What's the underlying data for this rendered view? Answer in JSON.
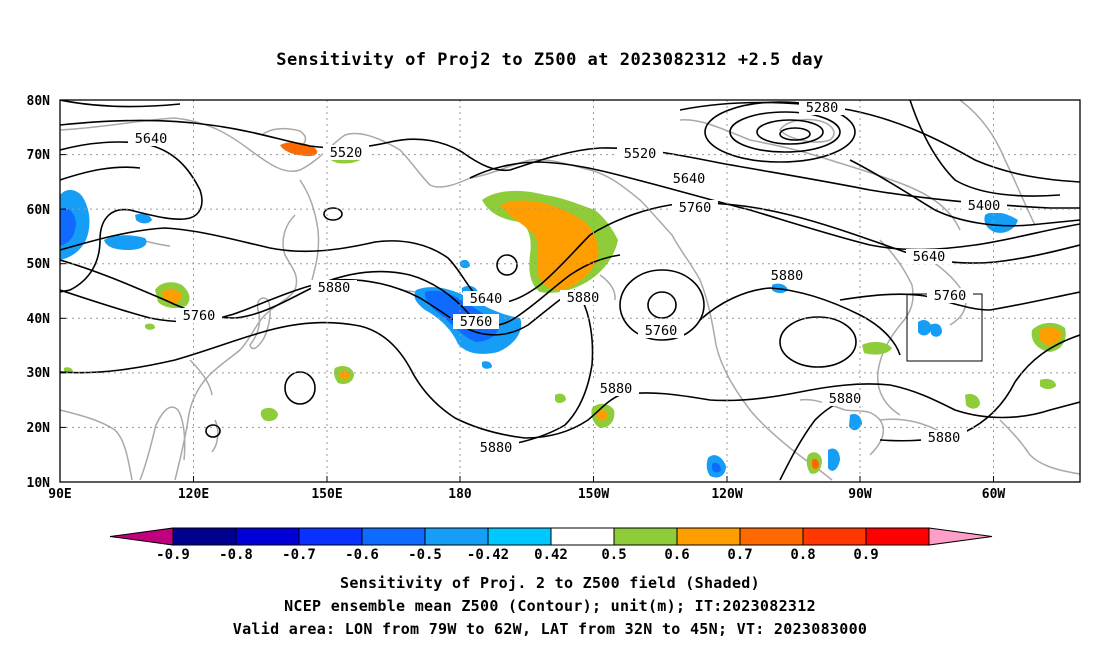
{
  "title": "Sensitivity of Proj2 to Z500 at 2023082312 +2.5 day",
  "lat_labels": [
    "80N",
    "70N",
    "60N",
    "50N",
    "40N",
    "30N",
    "20N",
    "10N"
  ],
  "lon_labels": [
    "90E",
    "120E",
    "150E",
    "180",
    "150W",
    "120W",
    "90W",
    "60W"
  ],
  "contour_labels": [
    "5280",
    "5640",
    "5520",
    "5520",
    "5640",
    "5760",
    "5400",
    "5640",
    "5760",
    "5880",
    "5880",
    "5640",
    "5760",
    "5880",
    "5760",
    "5880",
    "5880",
    "5880",
    "5880",
    "5760"
  ],
  "colorbar": {
    "labels": [
      "-0.9",
      "-0.8",
      "-0.7",
      "-0.6",
      "-0.5",
      "-0.42",
      "0.42",
      "0.5",
      "0.6",
      "0.7",
      "0.8",
      "0.9"
    ],
    "colors": [
      "#c0007f",
      "#00008f",
      "#0000d6",
      "#0a31ff",
      "#0f6aff",
      "#169ef7",
      "#00c8ff",
      "#ffffff",
      "#8fcc3a",
      "#ff9e00",
      "#ff6a00",
      "#ff3800",
      "#ff0000",
      "#ff9ec8"
    ]
  },
  "colors": {
    "contour": "#000000",
    "coastline": "#a9a9a9",
    "grid": "#9a9a9a"
  },
  "captions": {
    "line1": "Sensitivity of Proj. 2 to Z500 field (Shaded)",
    "line2": "NCEP ensemble mean Z500 (Contour); unit(m); IT:2023082312",
    "line3": "Valid area: LON from 79W to 62W, LAT from 32N to 45N; VT: 2023083000"
  }
}
